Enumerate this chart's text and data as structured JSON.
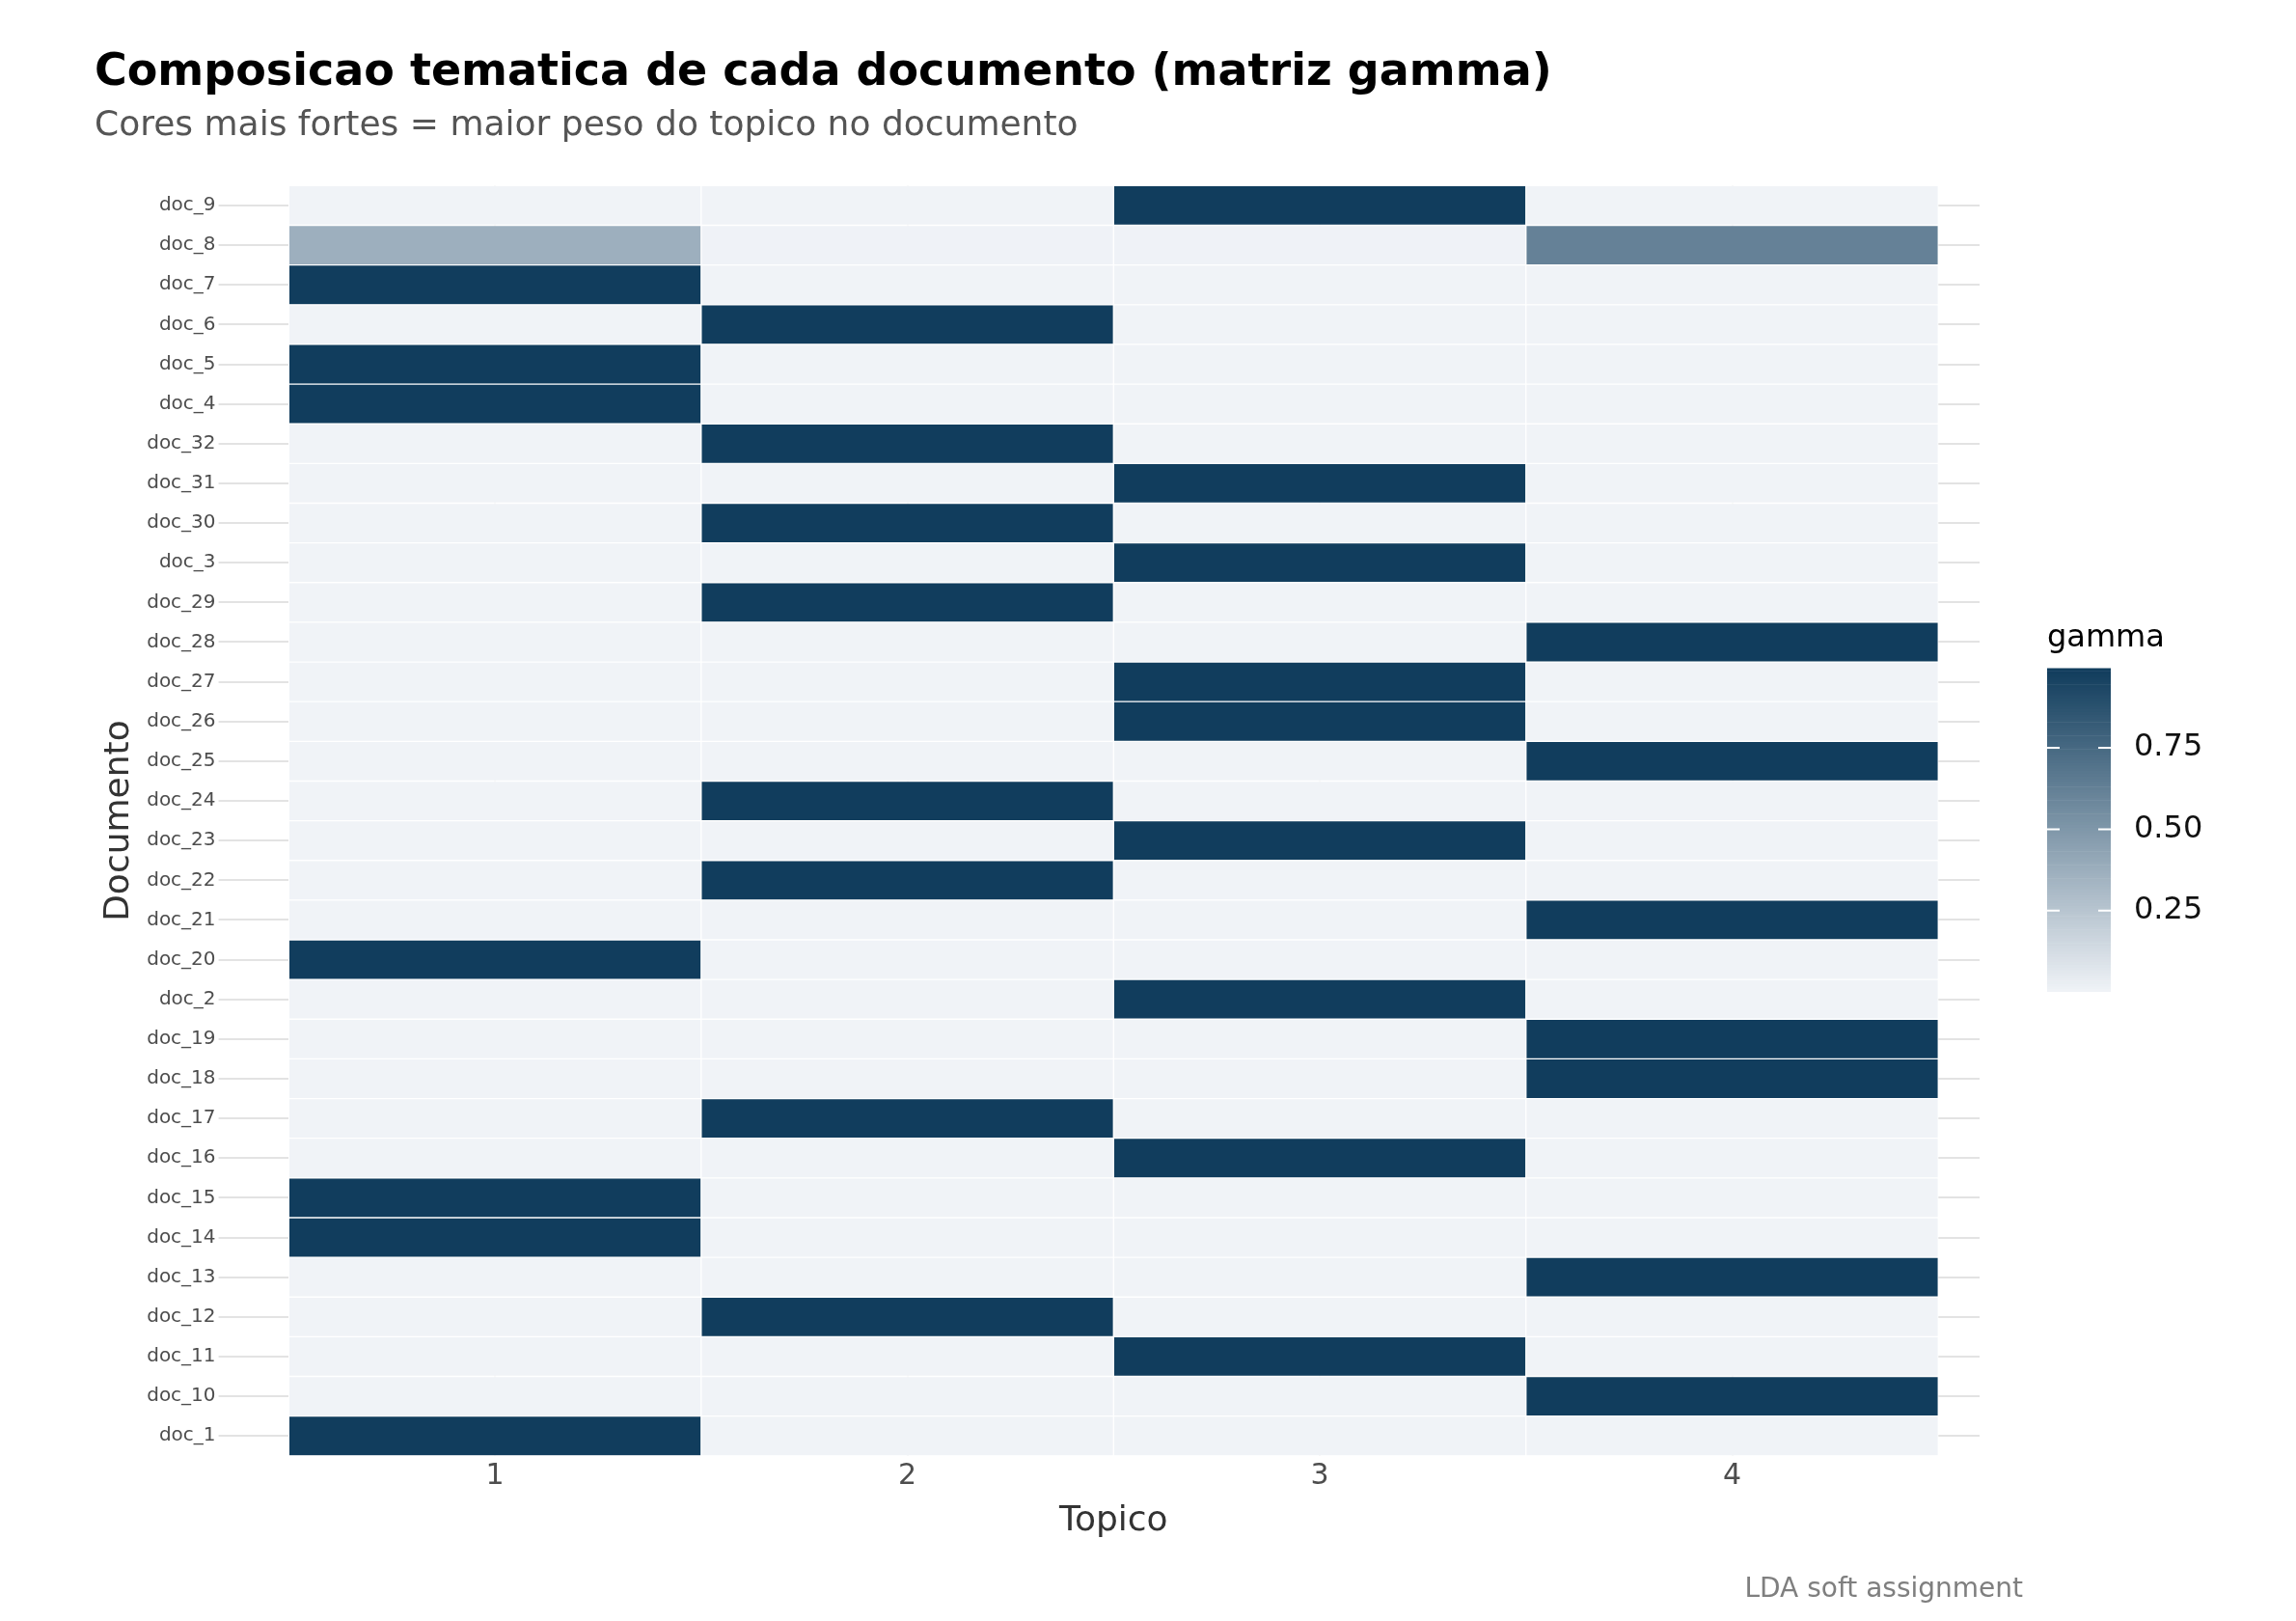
{
  "chart_data": {
    "type": "heatmap",
    "title": "Composicao tematica de cada documento (matriz gamma)",
    "subtitle": "Cores mais fortes = maior peso do topico no documento",
    "xlabel": "Topico",
    "ylabel": "Documento",
    "clabel": "gamma",
    "annotations": [
      "LDA soft assignment"
    ],
    "categories": [
      "1",
      "2",
      "3",
      "4"
    ],
    "y_categories": [
      "doc_9",
      "doc_8",
      "doc_7",
      "doc_6",
      "doc_5",
      "doc_4",
      "doc_32",
      "doc_31",
      "doc_30",
      "doc_3",
      "doc_29",
      "doc_28",
      "doc_27",
      "doc_26",
      "doc_25",
      "doc_24",
      "doc_23",
      "doc_22",
      "doc_21",
      "doc_20",
      "doc_2",
      "doc_19",
      "doc_18",
      "doc_17",
      "doc_16",
      "doc_15",
      "doc_14",
      "doc_13",
      "doc_12",
      "doc_11",
      "doc_10",
      "doc_1"
    ],
    "cells": [
      [
        0.003,
        0.003,
        0.99,
        0.003
      ],
      [
        0.37,
        0.005,
        0.005,
        0.62
      ],
      [
        0.99,
        0.003,
        0.003,
        0.003
      ],
      [
        0.003,
        0.99,
        0.003,
        0.003
      ],
      [
        0.99,
        0.003,
        0.003,
        0.003
      ],
      [
        0.99,
        0.003,
        0.003,
        0.003
      ],
      [
        0.003,
        0.99,
        0.003,
        0.003
      ],
      [
        0.003,
        0.003,
        0.99,
        0.003
      ],
      [
        0.003,
        0.99,
        0.003,
        0.003
      ],
      [
        0.003,
        0.003,
        0.99,
        0.003
      ],
      [
        0.003,
        0.99,
        0.003,
        0.003
      ],
      [
        0.003,
        0.003,
        0.003,
        0.99
      ],
      [
        0.003,
        0.003,
        0.99,
        0.003
      ],
      [
        0.003,
        0.003,
        0.99,
        0.003
      ],
      [
        0.003,
        0.003,
        0.003,
        0.99
      ],
      [
        0.003,
        0.99,
        0.003,
        0.003
      ],
      [
        0.003,
        0.003,
        0.99,
        0.003
      ],
      [
        0.003,
        0.99,
        0.003,
        0.003
      ],
      [
        0.003,
        0.003,
        0.003,
        0.99
      ],
      [
        0.99,
        0.003,
        0.003,
        0.003
      ],
      [
        0.003,
        0.003,
        0.99,
        0.003
      ],
      [
        0.003,
        0.003,
        0.003,
        0.99
      ],
      [
        0.003,
        0.003,
        0.003,
        0.99
      ],
      [
        0.003,
        0.99,
        0.003,
        0.003
      ],
      [
        0.003,
        0.003,
        0.99,
        0.003
      ],
      [
        0.99,
        0.003,
        0.003,
        0.003
      ],
      [
        0.99,
        0.003,
        0.003,
        0.003
      ],
      [
        0.003,
        0.003,
        0.003,
        0.99
      ],
      [
        0.003,
        0.99,
        0.003,
        0.003
      ],
      [
        0.003,
        0.003,
        0.99,
        0.003
      ],
      [
        0.003,
        0.003,
        0.003,
        0.99
      ],
      [
        0.99,
        0.003,
        0.003,
        0.003
      ]
    ],
    "colors": [
      "#f0f3f7",
      "#103c5c"
    ],
    "clim": [
      0.002,
      0.995
    ],
    "cticks": [
      0.25,
      {
        "value": 0.5,
        "label": "0.50"
      },
      0.75
    ],
    "grid": true
  }
}
